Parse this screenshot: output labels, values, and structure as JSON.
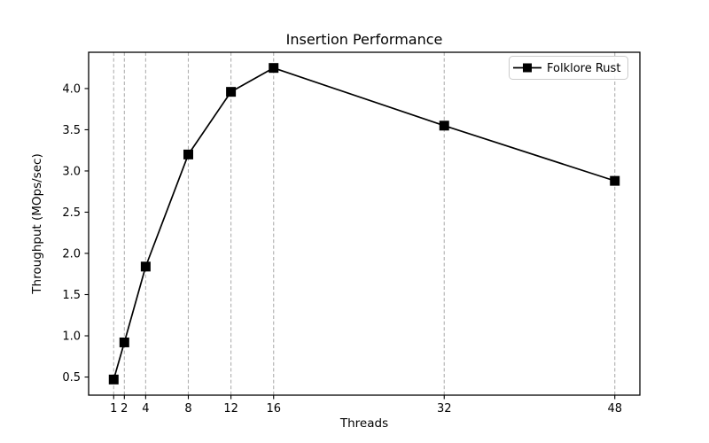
{
  "figure": {
    "background_color": "#ffffff",
    "spine_color": "#000000"
  },
  "chart_data": {
    "type": "line",
    "title": "Insertion Performance",
    "xlabel": "Threads",
    "ylabel": "Throughput (MOps/sec)",
    "series": [
      {
        "name": "Folklore Rust",
        "x": [
          1,
          2,
          4,
          8,
          12,
          16,
          32,
          48
        ],
        "y": [
          0.47,
          0.92,
          1.84,
          3.2,
          3.96,
          4.25,
          3.55,
          2.88
        ],
        "color": "#000000",
        "marker": "square",
        "marker_size": 11,
        "line_width": 1.7
      }
    ],
    "xticks": [
      1,
      2,
      4,
      8,
      12,
      16,
      32,
      48
    ],
    "yticks": [
      0.5,
      1.0,
      1.5,
      2.0,
      2.5,
      3.0,
      3.5,
      4.0
    ],
    "xlim": [
      -1.35,
      50.35
    ],
    "ylim": [
      0.28,
      4.44
    ],
    "grid": {
      "axis": "x",
      "style": "dashed",
      "color": "#b0b0b0"
    },
    "legend": {
      "position": "upper right",
      "border_color": "#cccccc",
      "background_color": "#ffffff"
    }
  }
}
